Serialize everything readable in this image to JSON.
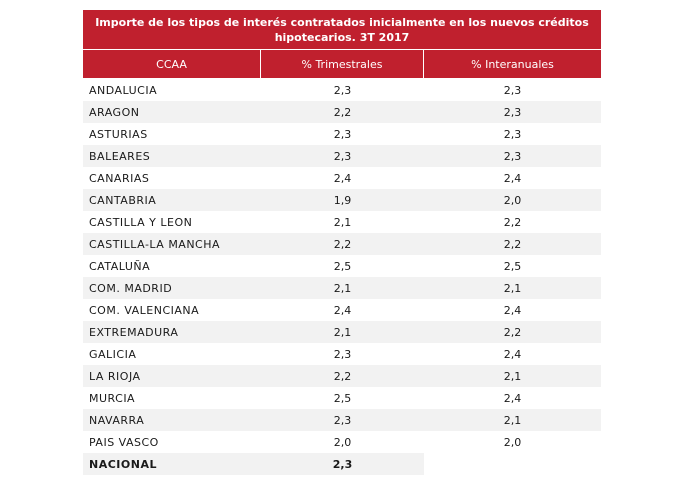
{
  "table": {
    "title_line1": "Importe de los tipos de interés contratados inicialmente  en los nuevos créditos",
    "title_line2": "hipotecarios.  3T 2017",
    "headers": [
      "CCAA",
      "% Trimestrales",
      "% Interanuales"
    ],
    "rows": [
      {
        "ccaa": "ANDALUCIA",
        "trimestral": "2,3",
        "interanual": "2,3"
      },
      {
        "ccaa": "ARAGON",
        "trimestral": "2,2",
        "interanual": "2,3"
      },
      {
        "ccaa": "ASTURIAS",
        "trimestral": "2,3",
        "interanual": "2,3"
      },
      {
        "ccaa": "BALEARES",
        "trimestral": "2,3",
        "interanual": "2,3"
      },
      {
        "ccaa": "CANARIAS",
        "trimestral": "2,4",
        "interanual": "2,4"
      },
      {
        "ccaa": "CANTABRIA",
        "trimestral": "1,9",
        "interanual": "2,0"
      },
      {
        "ccaa": "CASTILLA Y LEON",
        "trimestral": "2,1",
        "interanual": "2,2"
      },
      {
        "ccaa": "CASTILLA-LA MANCHA",
        "trimestral": "2,2",
        "interanual": "2,2"
      },
      {
        "ccaa": "CATALUÑA",
        "trimestral": "2,5",
        "interanual": "2,5"
      },
      {
        "ccaa": "COM. MADRID",
        "trimestral": "2,1",
        "interanual": "2,1"
      },
      {
        "ccaa": "COM. VALENCIANA",
        "trimestral": "2,4",
        "interanual": "2,4"
      },
      {
        "ccaa": "EXTREMADURA",
        "trimestral": "2,1",
        "interanual": "2,2"
      },
      {
        "ccaa": "GALICIA",
        "trimestral": "2,3",
        "interanual": "2,4"
      },
      {
        "ccaa": "LA RIOJA",
        "trimestral": "2,2",
        "interanual": "2,1"
      },
      {
        "ccaa": "MURCIA",
        "trimestral": "2,5",
        "interanual": "2,4"
      },
      {
        "ccaa": "NAVARRA",
        "trimestral": "2,3",
        "interanual": "2,1"
      },
      {
        "ccaa": "PAIS VASCO",
        "trimestral": "2,0",
        "interanual": "2,0"
      }
    ],
    "total": {
      "ccaa": "NACIONAL",
      "trimestral": "2,3",
      "interanual": ""
    }
  },
  "colors": {
    "header_bg": "#c0202e",
    "header_text": "#ffffff",
    "stripe": "#f2f2f2"
  }
}
